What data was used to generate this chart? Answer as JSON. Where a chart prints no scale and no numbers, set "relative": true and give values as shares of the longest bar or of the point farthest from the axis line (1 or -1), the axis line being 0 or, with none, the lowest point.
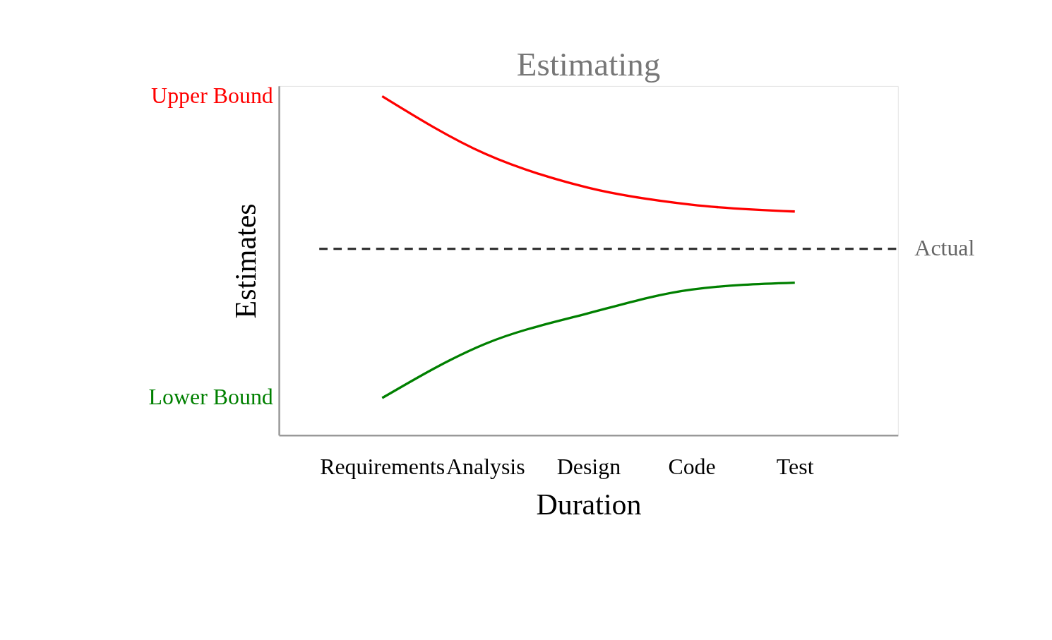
{
  "chart_data": {
    "type": "line",
    "title": "Estimating",
    "xlabel": "Duration",
    "ylabel": "Estimates",
    "relative": true,
    "categories": [
      "Requirements",
      "Analysis",
      "Design",
      "Code",
      "Test"
    ],
    "series": [
      {
        "name": "Upper Bound",
        "color": "#ff0000",
        "values": [
          1,
          0.83,
          0.73,
          0.68,
          0.66
        ]
      },
      {
        "name": "Lower Bound",
        "color": "#008000",
        "values": [
          0.11,
          0.27,
          0.36,
          0.43,
          0.45
        ]
      }
    ],
    "ref_lines": [
      {
        "axis": "y",
        "value": 0.55,
        "label": "Actual",
        "color": "#333333",
        "line_style": "dashed"
      }
    ],
    "grid": false,
    "legend": false,
    "marker": "none",
    "line_style": "solid"
  }
}
